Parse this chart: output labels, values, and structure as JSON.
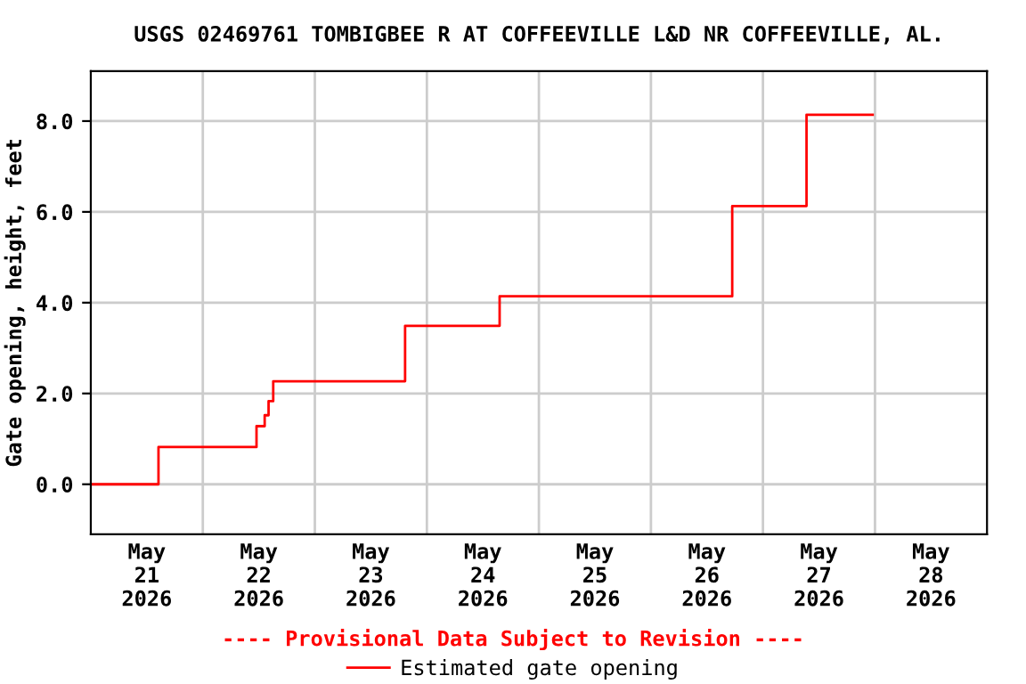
{
  "chart_data": {
    "type": "step",
    "title": "USGS 02469761 TOMBIGBEE R AT COFFEEVILLE L&D NR COFFEEVILLE, AL.",
    "ylabel": "Gate opening, height, feet",
    "x": [
      "2026-05-21T00:00",
      "2026-05-21T14:30",
      "2026-05-22T11:30",
      "2026-05-22T13:15",
      "2026-05-22T14:05",
      "2026-05-22T15:05",
      "2026-05-23T19:20",
      "2026-05-24T15:35",
      "2026-05-26T17:25",
      "2026-05-27T09:20",
      "2026-05-27T23:30"
    ],
    "series": [
      {
        "name": "Estimated gate opening",
        "color": "#ff0000",
        "values": [
          0,
          0.82,
          1.28,
          1.52,
          1.83,
          2.27,
          3.49,
          4.14,
          6.13,
          8.14,
          8.14
        ]
      }
    ],
    "xlim": [
      "2026-05-21T00:00",
      "2026-05-29T00:00"
    ],
    "xticks": [
      {
        "value": "2026-05-22T00:00",
        "label": null
      },
      {
        "value": "2026-05-23T00:00",
        "label": null
      },
      {
        "value": "2026-05-24T00:00",
        "label": null
      },
      {
        "value": "2026-05-25T00:00",
        "label": null
      },
      {
        "value": "2026-05-26T00:00",
        "label": null
      },
      {
        "value": "2026-05-27T00:00",
        "label": null
      },
      {
        "value": "2026-05-28T00:00",
        "label": null
      },
      {
        "value": "2026-05-21T12:00",
        "label": "May\n21\n2026"
      },
      {
        "value": "2026-05-22T12:00",
        "label": "May\n22\n2026"
      },
      {
        "value": "2026-05-23T12:00",
        "label": "May\n23\n2026"
      },
      {
        "value": "2026-05-24T12:00",
        "label": "May\n24\n2026"
      },
      {
        "value": "2026-05-25T12:00",
        "label": "May\n25\n2026"
      },
      {
        "value": "2026-05-26T12:00",
        "label": "May\n26\n2026"
      },
      {
        "value": "2026-05-27T12:00",
        "label": "May\n27\n2026"
      },
      {
        "value": "2026-05-28T12:00",
        "label": "May\n28\n2026"
      }
    ],
    "ylim": [
      -1.1,
      9.1
    ],
    "yticks": [
      {
        "value": 0,
        "label": "0.0"
      },
      {
        "value": 2,
        "label": "2.0"
      },
      {
        "value": 4,
        "label": "4.0"
      },
      {
        "value": 6,
        "label": "6.0"
      },
      {
        "value": 8,
        "label": "8.0"
      }
    ],
    "grid": true,
    "legend": "bottom",
    "annotations": [
      "---- Provisional Data Subject to Revision ----"
    ]
  }
}
